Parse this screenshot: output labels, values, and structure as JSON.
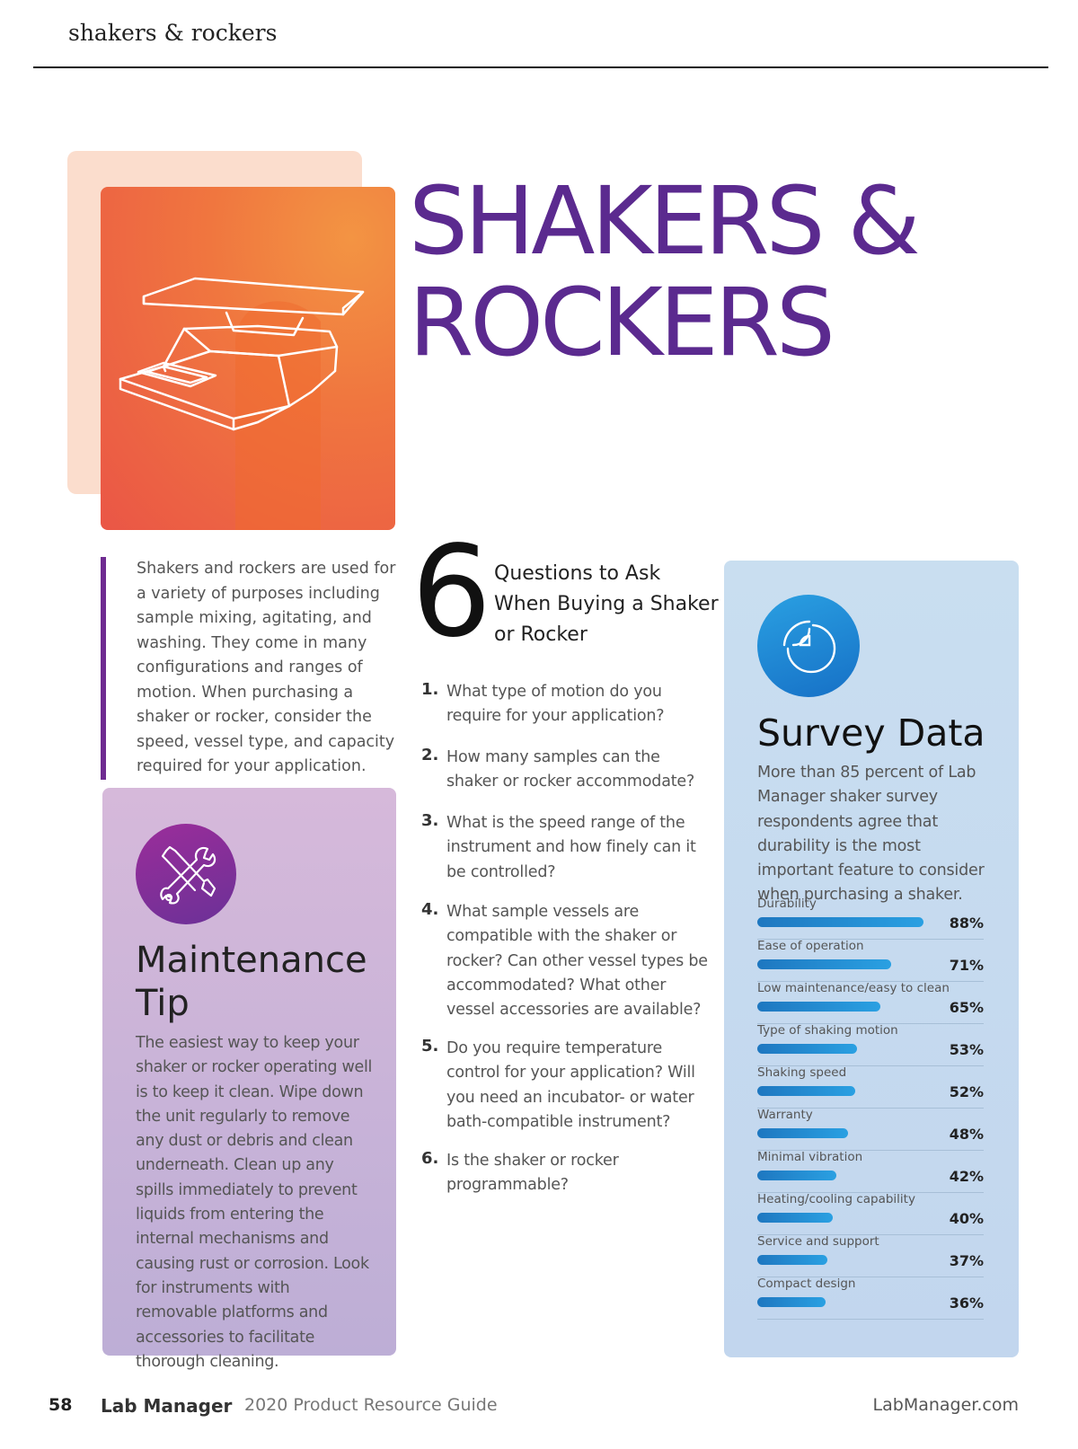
{
  "header": {
    "running_head": "shakers & rockers"
  },
  "hero": {
    "title_line1": "SHAKERS &",
    "title_line2": "ROCKERS",
    "illustration": "shaker-illustration",
    "colors": {
      "front": "#ee6a43",
      "back": "#fbd9c8",
      "title": "#5b2a8f"
    }
  },
  "intro": {
    "text": "Shakers and rockers are used for a variety of purposes including sample mixing, agitating, and washing. They come in many configurations and ranges of motion. When purchasing a shaker or rocker, consider the speed, vessel type, and capacity required for your application."
  },
  "maintenance": {
    "icon": "tools-icon",
    "title_line1": "Maintenance",
    "title_line2": "Tip",
    "text": "The easiest way to keep your shaker or rocker operating well is to keep it clean. Wipe down the unit regularly to remove any dust or debris and clean underneath. Clean up any spills immediately to prevent liquids from entering the internal mechanisms and causing rust or corrosion. Look for instruments with removable platforms and accessories to facilitate thorough cleaning."
  },
  "questions": {
    "number": "6",
    "heading": "Questions to Ask When Buying a Shaker or Rocker",
    "items": [
      {
        "num": "1.",
        "text": "What type of motion do you require for your application?"
      },
      {
        "num": "2.",
        "text": "How many samples can the shaker or rocker accommodate?"
      },
      {
        "num": "3.",
        "text": "What is the speed range of the instrument and how finely can it be controlled?"
      },
      {
        "num": "4.",
        "text": "What sample vessels are compatible with the shaker or rocker? Can other vessel types be accommodated? What other vessel accessories are available?"
      },
      {
        "num": "5.",
        "text": "Do you require temperature control for your application? Will you need an incubator- or water bath-compatible instrument?"
      },
      {
        "num": "6.",
        "text": "Is the shaker or rocker programmable?"
      }
    ]
  },
  "survey": {
    "icon": "chart-icon",
    "title": "Survey Data",
    "description": "More than 85 percent of Lab Manager shaker survey respondents agree that durability is the most important feature to consider when purchasing a shaker."
  },
  "chart_data": {
    "type": "bar",
    "orientation": "horizontal",
    "categories": [
      "Durability",
      "Ease of operation",
      "Low maintenance/easy to clean",
      "Type of shaking motion",
      "Shaking speed",
      "Warranty",
      "Minimal vibration",
      "Heating/cooling capability",
      "Service and support",
      "Compact design"
    ],
    "values": [
      88,
      71,
      65,
      53,
      52,
      48,
      42,
      40,
      37,
      36
    ],
    "value_labels": [
      "88%",
      "71%",
      "65%",
      "53%",
      "52%",
      "48%",
      "42%",
      "40%",
      "37%",
      "36%"
    ],
    "xlim": [
      0,
      100
    ],
    "bar_color": "#1f86cf"
  },
  "footer": {
    "page_number": "58",
    "magazine": "Lab Manager",
    "guide": "2020 Product Resource Guide",
    "site": "LabManager.com"
  }
}
